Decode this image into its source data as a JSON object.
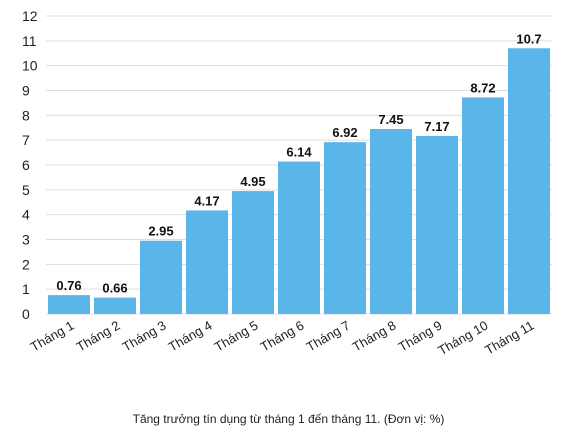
{
  "chart_data": {
    "type": "bar",
    "categories": [
      "Tháng 1",
      "Tháng 2",
      "Tháng 3",
      "Tháng 4",
      "Tháng 5",
      "Tháng 6",
      "Tháng 7",
      "Tháng 8",
      "Tháng 9",
      "Tháng 10",
      "Tháng 11"
    ],
    "values": [
      0.76,
      0.66,
      2.95,
      4.17,
      4.95,
      6.14,
      6.92,
      7.45,
      7.17,
      8.72,
      10.7
    ],
    "data_labels": [
      "0.76",
      "0.66",
      "2.95",
      "4.17",
      "4.95",
      "6.14",
      "6.92",
      "7.45",
      "7.17",
      "8.72",
      "10.7"
    ],
    "yticks": [
      "0",
      "1",
      "2",
      "3",
      "4",
      "5",
      "6",
      "7",
      "8",
      "9",
      "10",
      "11",
      "12"
    ],
    "ylim": [
      0,
      12
    ],
    "grid": true,
    "bar_color": "#5ab6e8",
    "grid_color": "#dddddd",
    "title": "",
    "xlabel": "",
    "ylabel": ""
  },
  "caption": "Tăng trưởng tín dụng từ tháng 1 đến tháng 11. (Đơn vị: %)"
}
